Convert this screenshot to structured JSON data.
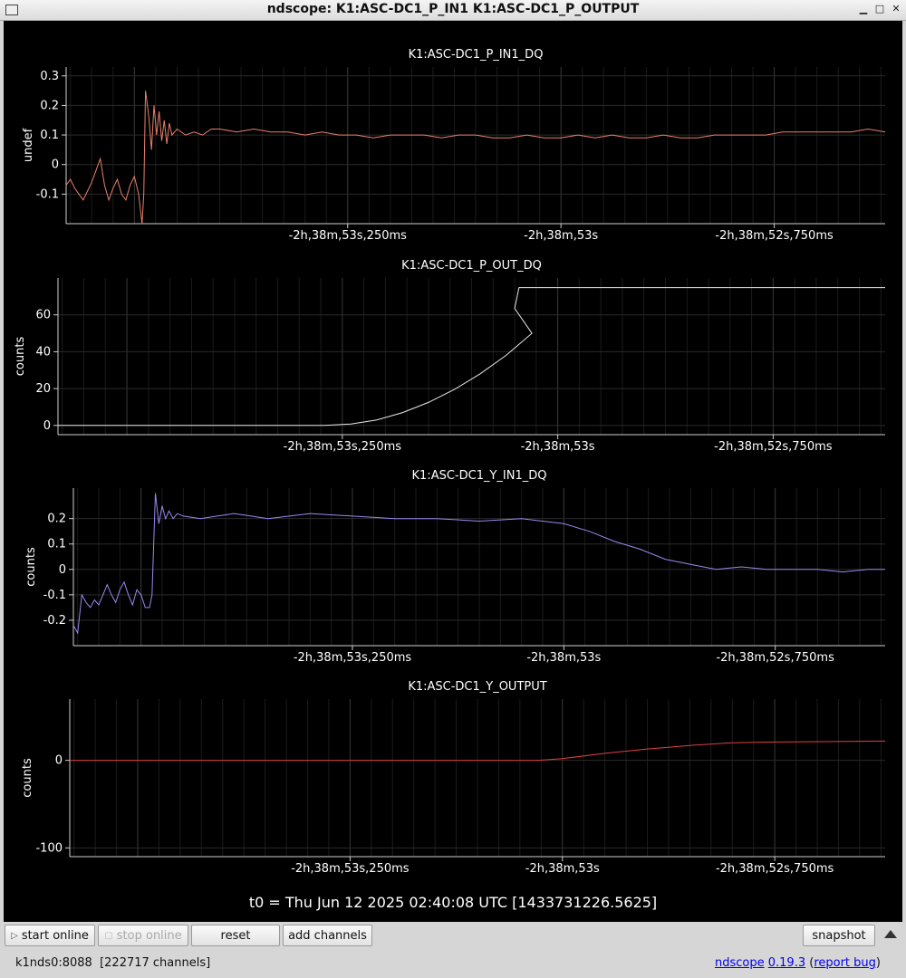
{
  "window": {
    "title": "ndscope: K1:ASC-DC1_P_IN1 K1:ASC-DC1_P_OUTPUT"
  },
  "colors": {
    "background": "#000000",
    "grid": "#2a2a2a",
    "axis": "#cfcfcf",
    "text": "#ffffff"
  },
  "chart_data": [
    {
      "type": "line",
      "title": "K1:ASC-DC1_P_IN1_DQ",
      "ylabel": "undef",
      "xlabel": "",
      "ylim": [
        -0.2,
        0.33
      ],
      "yticks": [
        -0.1,
        0,
        0.1,
        0.2,
        0.3
      ],
      "ytick_labels": [
        "-0.1",
        "0",
        "0.1",
        "0.2",
        "0.3"
      ],
      "xlim": [
        -0.58,
        0.38
      ],
      "xticks": [
        -0.25,
        0,
        0.25
      ],
      "xtick_labels": [
        "-2h,38m,53s,250ms",
        "-2h,38m,53s",
        "-2h,38m,52s,750ms"
      ],
      "grid": true,
      "series": [
        {
          "color": "#e8806a",
          "x": [
            -0.58,
            -0.575,
            -0.57,
            -0.565,
            -0.56,
            -0.555,
            -0.55,
            -0.545,
            -0.54,
            -0.535,
            -0.53,
            -0.525,
            -0.52,
            -0.515,
            -0.51,
            -0.505,
            -0.5,
            -0.495,
            -0.491,
            -0.489,
            -0.487,
            -0.483,
            -0.48,
            -0.477,
            -0.474,
            -0.471,
            -0.468,
            -0.465,
            -0.462,
            -0.459,
            -0.456,
            -0.45,
            -0.44,
            -0.43,
            -0.42,
            -0.41,
            -0.4,
            -0.38,
            -0.36,
            -0.34,
            -0.32,
            -0.3,
            -0.28,
            -0.26,
            -0.24,
            -0.22,
            -0.2,
            -0.18,
            -0.16,
            -0.14,
            -0.12,
            -0.1,
            -0.08,
            -0.06,
            -0.04,
            -0.02,
            0,
            0.02,
            0.04,
            0.06,
            0.08,
            0.1,
            0.12,
            0.14,
            0.16,
            0.18,
            0.2,
            0.22,
            0.24,
            0.26,
            0.28,
            0.3,
            0.32,
            0.34,
            0.36,
            0.38
          ],
          "y": [
            -0.07,
            -0.05,
            -0.08,
            -0.1,
            -0.12,
            -0.09,
            -0.06,
            -0.02,
            0.02,
            -0.07,
            -0.12,
            -0.08,
            -0.05,
            -0.1,
            -0.12,
            -0.07,
            -0.04,
            -0.1,
            -0.2,
            -0.1,
            0.25,
            0.16,
            0.05,
            0.2,
            0.1,
            0.18,
            0.08,
            0.15,
            0.07,
            0.14,
            0.1,
            0.12,
            0.1,
            0.11,
            0.1,
            0.12,
            0.12,
            0.11,
            0.12,
            0.11,
            0.11,
            0.1,
            0.11,
            0.1,
            0.1,
            0.09,
            0.1,
            0.1,
            0.1,
            0.09,
            0.1,
            0.1,
            0.09,
            0.09,
            0.1,
            0.09,
            0.09,
            0.1,
            0.09,
            0.1,
            0.09,
            0.09,
            0.1,
            0.09,
            0.09,
            0.1,
            0.1,
            0.1,
            0.1,
            0.11,
            0.11,
            0.11,
            0.11,
            0.11,
            0.12,
            0.11
          ]
        }
      ]
    },
    {
      "type": "line",
      "title": "K1:ASC-DC1_P_OUT_DQ",
      "ylabel": "counts",
      "xlabel": "",
      "ylim": [
        -5,
        80
      ],
      "yticks": [
        0,
        20,
        40,
        60
      ],
      "ytick_labels": [
        "0",
        "20",
        "40",
        "60"
      ],
      "xlim": [
        -0.58,
        0.38
      ],
      "xticks": [
        -0.25,
        0,
        0.25
      ],
      "xtick_labels": [
        "-2h,38m,53s,250ms",
        "-2h,38m,53s",
        "-2h,38m,52s,750ms"
      ],
      "grid": true,
      "series": [
        {
          "color": "#e8e8e8",
          "x": [
            -0.58,
            -0.5,
            -0.4,
            -0.3,
            -0.27,
            -0.24,
            -0.21,
            -0.18,
            -0.15,
            -0.12,
            -0.09,
            -0.06,
            -0.03,
            -0.05,
            -0.045,
            0.38
          ],
          "y": [
            0,
            0,
            0,
            0,
            0,
            0.8,
            3,
            7,
            12.5,
            19.5,
            28,
            38,
            50,
            63.5,
            74.8,
            74.8
          ]
        }
      ]
    },
    {
      "type": "line",
      "title": "K1:ASC-DC1_Y_IN1_DQ",
      "ylabel": "counts",
      "xlabel": "",
      "ylim": [
        -0.3,
        0.32
      ],
      "yticks": [
        -0.2,
        -0.1,
        0,
        0.1,
        0.2
      ],
      "ytick_labels": [
        "-0.2",
        "-0.1",
        "0",
        "0.1",
        "0.2"
      ],
      "xlim": [
        -0.58,
        0.38
      ],
      "xticks": [
        -0.25,
        0,
        0.25
      ],
      "xtick_labels": [
        "-2h,38m,53s,250ms",
        "-2h,38m,53s",
        "-2h,38m,52s,750ms"
      ],
      "grid": true,
      "series": [
        {
          "color": "#9a88f2",
          "x": [
            -0.58,
            -0.575,
            -0.57,
            -0.565,
            -0.56,
            -0.555,
            -0.55,
            -0.545,
            -0.54,
            -0.535,
            -0.53,
            -0.525,
            -0.52,
            -0.515,
            -0.51,
            -0.505,
            -0.5,
            -0.495,
            -0.49,
            -0.487,
            -0.483,
            -0.479,
            -0.475,
            -0.471,
            -0.467,
            -0.462,
            -0.457,
            -0.45,
            -0.43,
            -0.41,
            -0.39,
            -0.37,
            -0.35,
            -0.3,
            -0.25,
            -0.2,
            -0.15,
            -0.1,
            -0.05,
            0,
            0.03,
            0.06,
            0.09,
            0.12,
            0.15,
            0.18,
            0.21,
            0.24,
            0.27,
            0.3,
            0.33,
            0.36,
            0.38
          ],
          "y": [
            -0.22,
            -0.25,
            -0.1,
            -0.13,
            -0.15,
            -0.12,
            -0.14,
            -0.1,
            -0.06,
            -0.1,
            -0.13,
            -0.08,
            -0.05,
            -0.1,
            -0.14,
            -0.08,
            -0.1,
            -0.15,
            -0.15,
            -0.1,
            0.3,
            0.18,
            0.25,
            0.2,
            0.23,
            0.2,
            0.22,
            0.21,
            0.2,
            0.21,
            0.22,
            0.21,
            0.2,
            0.22,
            0.21,
            0.2,
            0.2,
            0.19,
            0.2,
            0.18,
            0.15,
            0.11,
            0.08,
            0.04,
            0.02,
            0.0,
            0.01,
            0.0,
            0.0,
            0.0,
            -0.01,
            0.0,
            0.0
          ]
        }
      ]
    },
    {
      "type": "line",
      "title": "K1:ASC-DC1_Y_OUTPUT",
      "ylabel": "counts",
      "xlabel": "",
      "ylim": [
        -110,
        70
      ],
      "yticks": [
        -100,
        0
      ],
      "ytick_labels": [
        "-100",
        "0"
      ],
      "xlim": [
        -0.58,
        0.38
      ],
      "xticks": [
        -0.25,
        0,
        0.25
      ],
      "xtick_labels": [
        "-2h,38m,53s,250ms",
        "-2h,38m,53s",
        "-2h,38m,52s,750ms"
      ],
      "grid": true,
      "series": [
        {
          "color": "#e04040",
          "x": [
            -0.58,
            -0.03,
            0,
            0.05,
            0.1,
            0.15,
            0.2,
            0.25,
            0.38
          ],
          "y": [
            0,
            0,
            2,
            8,
            13,
            17,
            20,
            21,
            22
          ]
        }
      ]
    }
  ],
  "t0_label": "t0 = Thu Jun 12 2025 02:40:08 UTC [1433731226.5625]",
  "toolbar": {
    "start_online": "start online",
    "stop_online": "stop online",
    "reset": "reset",
    "add_channels": "add channels",
    "snapshot": "snapshot"
  },
  "status": {
    "server": "k1nds0:8088",
    "channels": "[222717 channels]",
    "app_name": "ndscope",
    "version": "0.19.3",
    "report_bug": "report bug",
    "paren_open": "(",
    "paren_close": ")"
  }
}
